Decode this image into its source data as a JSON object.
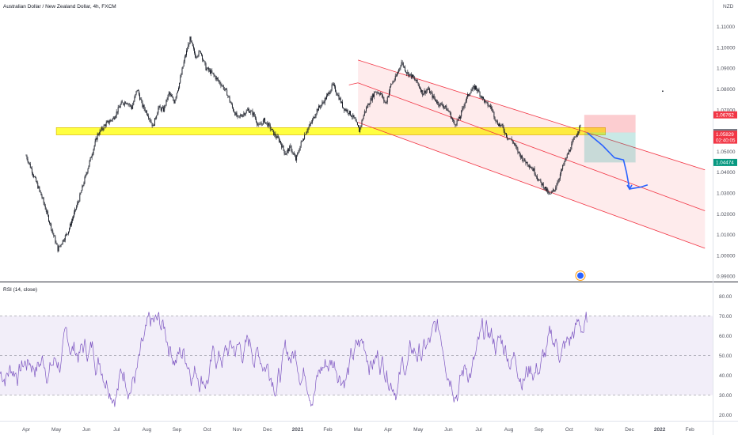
{
  "header": {
    "title": "Australian Dollar / New Zealand Dollar, 4h, FXCM",
    "currency": "NZD"
  },
  "colors": {
    "candle": "#131722",
    "support_zone": "#ffff00",
    "channel_line": "#f23645",
    "channel_fill": "#f2364522",
    "stop_zone": "#f2364540",
    "target_zone": "#26a69a40",
    "forecast_arrow": "#2962ff",
    "rsi_line": "#7e57c2",
    "rsi_band": "#7e57c21a"
  },
  "chart_data": [
    {
      "type": "line",
      "panel": "price",
      "series_kind": "candlestick",
      "y_ticks": [
        "1.11000",
        "1.10000",
        "1.09000",
        "1.08000",
        "1.07000",
        "1.06000",
        "1.05000",
        "1.04000",
        "1.03000",
        "1.02000",
        "1.01000",
        "1.00000",
        "0.99000"
      ],
      "ylim": [
        0.9875,
        1.1175
      ],
      "x_ticks": [
        "Apr",
        "May",
        "Jun",
        "Jul",
        "Aug",
        "Sep",
        "Oct",
        "Nov",
        "Dec",
        "2021",
        "Feb",
        "Mar",
        "Apr",
        "May",
        "Jun",
        "Jul",
        "Aug",
        "Sep",
        "Oct",
        "Nov",
        "Dec",
        "2022",
        "Feb"
      ],
      "price_labels": [
        {
          "value": "1.06762",
          "color": "#f23645",
          "y": 1.06762
        },
        {
          "value": "1.05915",
          "color": "#787b86",
          "y": 1.05915
        },
        {
          "value": "1.05829",
          "color": "#f23645",
          "y": 1.05829
        },
        {
          "value": "02:40:05",
          "color": "#f23645",
          "y": 1.0555
        },
        {
          "value": "1.04474",
          "color": "#089981",
          "y": 1.04474
        }
      ],
      "path": [
        [
          0,
          1.048
        ],
        [
          3,
          1.028
        ],
        [
          6,
          1.003
        ],
        [
          8,
          1.012
        ],
        [
          10,
          1.027
        ],
        [
          12,
          1.045
        ],
        [
          13.5,
          1.058
        ],
        [
          15,
          1.063
        ],
        [
          16.5,
          1.066
        ],
        [
          18,
          1.073
        ],
        [
          19,
          1.074
        ],
        [
          20,
          1.071
        ],
        [
          21,
          1.08
        ],
        [
          22,
          1.072
        ],
        [
          23,
          1.068
        ],
        [
          24,
          1.062
        ],
        [
          25,
          1.071
        ],
        [
          26,
          1.07
        ],
        [
          27,
          1.078
        ],
        [
          28,
          1.074
        ],
        [
          29,
          1.083
        ],
        [
          30,
          1.095
        ],
        [
          31,
          1.104
        ],
        [
          32,
          1.096
        ],
        [
          33,
          1.098
        ],
        [
          34,
          1.09
        ],
        [
          35,
          1.088
        ],
        [
          36,
          1.085
        ],
        [
          37,
          1.082
        ],
        [
          38,
          1.078
        ],
        [
          39,
          1.071
        ],
        [
          40,
          1.066
        ],
        [
          41,
          1.068
        ],
        [
          42,
          1.07
        ],
        [
          43,
          1.068
        ],
        [
          44,
          1.062
        ],
        [
          45,
          1.065
        ],
        [
          46,
          1.062
        ],
        [
          47,
          1.058
        ],
        [
          48,
          1.055
        ],
        [
          49,
          1.049
        ],
        [
          50,
          1.052
        ],
        [
          51,
          1.046
        ],
        [
          52,
          1.054
        ],
        [
          53,
          1.06
        ],
        [
          54,
          1.064
        ],
        [
          55,
          1.07
        ],
        [
          56,
          1.073
        ],
        [
          57,
          1.077
        ],
        [
          58,
          1.082
        ],
        [
          59,
          1.077
        ],
        [
          60,
          1.071
        ],
        [
          61,
          1.069
        ],
        [
          62,
          1.066
        ],
        [
          63,
          1.06
        ],
        [
          64,
          1.069
        ],
        [
          65,
          1.074
        ],
        [
          66,
          1.079
        ],
        [
          67,
          1.078
        ],
        [
          68,
          1.073
        ],
        [
          69,
          1.082
        ],
        [
          70,
          1.086
        ],
        [
          71,
          1.093
        ],
        [
          72,
          1.088
        ],
        [
          73,
          1.086
        ],
        [
          74,
          1.083
        ],
        [
          75,
          1.078
        ],
        [
          76,
          1.08
        ],
        [
          77,
          1.076
        ],
        [
          78,
          1.073
        ],
        [
          79,
          1.072
        ],
        [
          80,
          1.069
        ],
        [
          81,
          1.063
        ],
        [
          82,
          1.066
        ],
        [
          83,
          1.074
        ],
        [
          84,
          1.079
        ],
        [
          85,
          1.081
        ],
        [
          86,
          1.077
        ],
        [
          87,
          1.073
        ],
        [
          88,
          1.071
        ],
        [
          89,
          1.064
        ],
        [
          90,
          1.062
        ],
        [
          91,
          1.057
        ],
        [
          92,
          1.055
        ],
        [
          93,
          1.05
        ],
        [
          94,
          1.046
        ],
        [
          95,
          1.044
        ],
        [
          96,
          1.041
        ],
        [
          97,
          1.036
        ],
        [
          98,
          1.033
        ],
        [
          99,
          1.029
        ],
        [
          100,
          1.032
        ],
        [
          101,
          1.039
        ],
        [
          102,
          1.046
        ],
        [
          103,
          1.052
        ],
        [
          104,
          1.058
        ],
        [
          105,
          1.063
        ]
      ],
      "path_x_range": [
        0,
        105
      ],
      "path_month_anchor": {
        "Apr_2020": 0,
        "Oct_2021": 105
      },
      "support_zone": {
        "from_month_index": 1,
        "to_month_index": 19.2,
        "top": 1.0615,
        "bottom": 1.058
      },
      "channel": {
        "start_index": 11.0,
        "end_index": 22.5,
        "upper": [
          1.094,
          1.0412
        ],
        "middle": [
          1.083,
          1.0215
        ],
        "lower": [
          1.064,
          1.0035
        ],
        "wide_start_index": 10.7,
        "wide_upper_start": 1.082
      },
      "position": {
        "from_month_index": 18.5,
        "to_month_index": 20.2,
        "stop": 1.06762,
        "entry": 1.05915,
        "target": 1.04474
      },
      "forecast": [
        [
          18.6,
          1.059
        ],
        [
          19.1,
          1.053
        ],
        [
          19.5,
          1.047
        ],
        [
          19.8,
          1.046
        ],
        [
          19.9,
          1.04
        ],
        [
          20.0,
          1.032
        ],
        [
          20.4,
          1.033
        ],
        [
          20.6,
          1.034
        ]
      ],
      "marker": {
        "month_index": 21.1,
        "value": 1.079
      }
    },
    {
      "type": "line",
      "panel": "indicator",
      "title": "RSI (14, close)",
      "y_ticks": [
        "80.00",
        "70.00",
        "60.00",
        "50.00",
        "40.00",
        "30.00",
        "20.00"
      ],
      "ylim": [
        17,
        87
      ],
      "levels": {
        "upper": 70,
        "middle": 50,
        "lower": 30
      },
      "x_range_months": [
        0,
        18.6
      ]
    }
  ]
}
